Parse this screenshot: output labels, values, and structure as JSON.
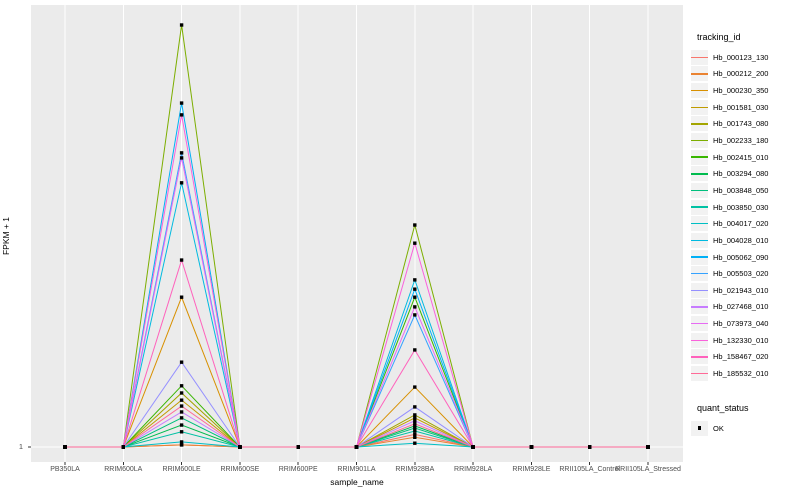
{
  "figure": {
    "background": "#FFFFFF",
    "panel_background": "#EBEBEB",
    "grid_color": "#FFFFFF",
    "tick_color": "#333333",
    "axis_text_color": "#4D4D4D",
    "point_color": "#000000"
  },
  "axes": {
    "y_title": "FPKM + 1",
    "x_title": "sample_name",
    "y_ticks": [
      "1"
    ]
  },
  "legend": {
    "tracking_title": "tracking_id",
    "quant_title": "quant_status",
    "quant_items": [
      {
        "label": "OK",
        "marker": "black-square"
      }
    ]
  },
  "chart_data": {
    "type": "line",
    "title": "",
    "xlabel": "sample_name",
    "ylabel": "FPKM + 1",
    "y_axis": "linear; only the tick '1' (baseline) is labeled; series values below are relative heights: fraction of plotted range above the baseline (1.0 = tallest peak)",
    "grid": "white major gridlines on gray panel (ggplot2 style)",
    "legend_position": "right",
    "point_marker": "small black square (quant_status = OK) at every observation",
    "categories": [
      "PB350LA",
      "RRIM600LA",
      "RRIM600LE",
      "RRIM600SE",
      "RRIM600PE",
      "RRIM901LA",
      "RRIM928BA",
      "RRIM928LA",
      "RRIM928LE",
      "RRII105LA_Control",
      "RRII105LA_Stressed"
    ],
    "series": [
      {
        "name": "Hb_000123_130",
        "color": "#F8766D",
        "values": [
          0,
          0,
          0.005,
          0,
          0,
          0,
          0.03,
          0,
          0,
          0,
          0
        ]
      },
      {
        "name": "Hb_000212_200",
        "color": "#EA8331",
        "values": [
          0,
          0,
          0.005,
          0,
          0,
          0,
          0.023,
          0,
          0,
          0,
          0
        ]
      },
      {
        "name": "Hb_000230_350",
        "color": "#D89000",
        "values": [
          0,
          0,
          0.355,
          0,
          0,
          0,
          0.142,
          0,
          0,
          0,
          0
        ]
      },
      {
        "name": "Hb_001581_030",
        "color": "#C09B00",
        "values": [
          0,
          0,
          0.111,
          0,
          0,
          0,
          0.069,
          0,
          0,
          0,
          0
        ]
      },
      {
        "name": "Hb_001743_080",
        "color": "#A3A500",
        "values": [
          0,
          0,
          0.128,
          0,
          0,
          0,
          0.076,
          0,
          0,
          0,
          0
        ]
      },
      {
        "name": "Hb_002233_180",
        "color": "#7CAE00",
        "values": [
          0,
          0,
          1.0,
          0,
          0,
          0,
          0.526,
          0,
          0,
          0,
          0
        ]
      },
      {
        "name": "Hb_002415_010",
        "color": "#39B600",
        "values": [
          0,
          0,
          0.145,
          0,
          0,
          0,
          0.355,
          0,
          0,
          0,
          0
        ]
      },
      {
        "name": "Hb_003294_080",
        "color": "#00BB4E",
        "values": [
          0,
          0,
          0.052,
          0,
          0,
          0,
          0.05,
          0,
          0,
          0,
          0
        ]
      },
      {
        "name": "Hb_003848_050",
        "color": "#00BF7D",
        "values": [
          0,
          0,
          0.069,
          0,
          0,
          0,
          0.045,
          0,
          0,
          0,
          0
        ]
      },
      {
        "name": "Hb_003850_030",
        "color": "#00C1A3",
        "values": [
          0,
          0,
          0.036,
          0,
          0,
          0,
          0.038,
          0,
          0,
          0,
          0
        ]
      },
      {
        "name": "Hb_004017_020",
        "color": "#00BFC4",
        "values": [
          0,
          0,
          0.012,
          0,
          0,
          0,
          0.009,
          0,
          0,
          0,
          0
        ]
      },
      {
        "name": "Hb_004028_010",
        "color": "#00BAE0",
        "values": [
          0,
          0,
          0.626,
          0,
          0,
          0,
          0.396,
          0,
          0,
          0,
          0
        ]
      },
      {
        "name": "Hb_005062_090",
        "color": "#00B0F6",
        "values": [
          0,
          0,
          0.815,
          0,
          0,
          0,
          0.374,
          0,
          0,
          0,
          0
        ]
      },
      {
        "name": "Hb_005503_020",
        "color": "#35A2FF",
        "values": [
          0,
          0,
          0.697,
          0,
          0,
          0,
          0.313,
          0,
          0,
          0,
          0
        ]
      },
      {
        "name": "Hb_021943_010",
        "color": "#9590FF",
        "values": [
          0,
          0,
          0.201,
          0,
          0,
          0,
          0.095,
          0,
          0,
          0,
          0
        ]
      },
      {
        "name": "Hb_027468_010",
        "color": "#C77CFF",
        "values": [
          0,
          0,
          0.083,
          0,
          0,
          0,
          0.062,
          0,
          0,
          0,
          0
        ]
      },
      {
        "name": "Hb_073973_040",
        "color": "#E76BF3",
        "values": [
          0,
          0,
          0.685,
          0,
          0,
          0,
          0.332,
          0,
          0,
          0,
          0
        ]
      },
      {
        "name": "Hb_132330_010",
        "color": "#FA62DB",
        "values": [
          0,
          0,
          0.787,
          0,
          0,
          0,
          0.483,
          0,
          0,
          0,
          0
        ]
      },
      {
        "name": "Hb_158467_020",
        "color": "#FF62BC",
        "values": [
          0,
          0,
          0.443,
          0,
          0,
          0,
          0.23,
          0,
          0,
          0,
          0
        ]
      },
      {
        "name": "Hb_185532_010",
        "color": "#FF6A98",
        "values": [
          0,
          0,
          0.097,
          0,
          0,
          0,
          0.055,
          0,
          0,
          0,
          0
        ]
      }
    ]
  }
}
